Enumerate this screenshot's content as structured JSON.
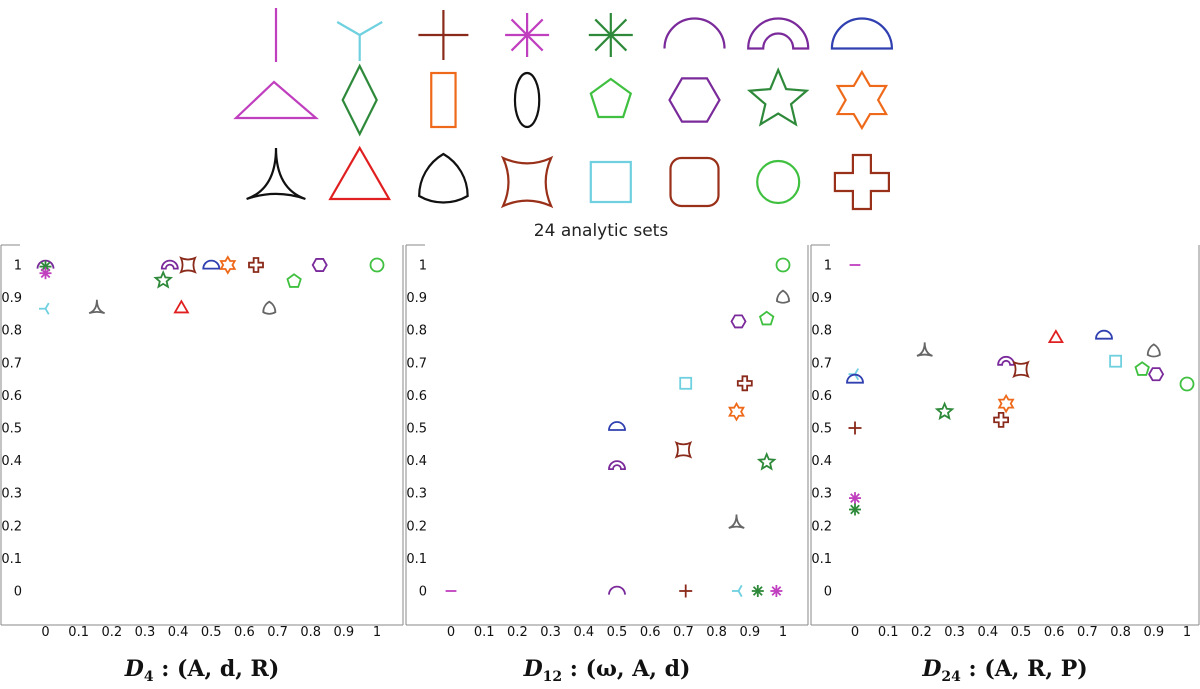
{
  "figure_caption": "24 analytic sets",
  "colors": {
    "magenta": "#c03fbf",
    "cyan": "#6fd0e0",
    "brown": "#8a2a1a",
    "green": "#2e8a3a",
    "purple": "#7a2a9a",
    "blue": "#3040b0",
    "orange": "#ee6a1a",
    "black": "#111111",
    "red": "#e02020",
    "lime": "#40c040",
    "gray": "#666666",
    "rust": "#993019"
  },
  "gallery": [
    [
      {
        "icon": "segment-icon",
        "color": "#c03fbf"
      },
      {
        "icon": "tripod-icon",
        "color": "#6fd0e0"
      },
      {
        "icon": "plus-icon",
        "color": "#8a2a1a"
      },
      {
        "icon": "asterisk8-icon",
        "color": "#c03fbf"
      },
      {
        "icon": "asterisk8-icon",
        "color": "#2e8a3a"
      },
      {
        "icon": "semicircle-arc-icon",
        "color": "#7a2a9a"
      },
      {
        "icon": "half-annulus-icon",
        "color": "#7a2a9a"
      },
      {
        "icon": "half-disk-icon",
        "color": "#3040b0"
      }
    ],
    [
      {
        "icon": "obtuse-triangle-icon",
        "color": "#c03fbf"
      },
      {
        "icon": "rhombus-icon",
        "color": "#2e8a3a"
      },
      {
        "icon": "rectangle-icon",
        "color": "#ee6a1a"
      },
      {
        "icon": "ellipse-icon",
        "color": "#111111"
      },
      {
        "icon": "pentagon-icon",
        "color": "#40c040"
      },
      {
        "icon": "hexagon-icon",
        "color": "#7a2a9a"
      },
      {
        "icon": "star5-icon",
        "color": "#2e8a3a"
      },
      {
        "icon": "star6-icon",
        "color": "#ee6a1a"
      }
    ],
    [
      {
        "icon": "deltoid-icon",
        "color": "#111111"
      },
      {
        "icon": "triangle-icon",
        "color": "#e02020"
      },
      {
        "icon": "reuleaux-icon",
        "color": "#111111"
      },
      {
        "icon": "concave-square-icon",
        "color": "#993019"
      },
      {
        "icon": "square-icon",
        "color": "#6fd0e0"
      },
      {
        "icon": "rounded-square-icon",
        "color": "#993019"
      },
      {
        "icon": "circle-icon",
        "color": "#40c040"
      },
      {
        "icon": "cross-icon",
        "color": "#993019"
      }
    ]
  ],
  "chart_data": [
    {
      "type": "scatter",
      "title": "D4 : (A, d, R)",
      "title_parts": {
        "cal": "D",
        "sub": "4",
        "rest": " : (A, d, R)"
      },
      "xlim": [
        0,
        1
      ],
      "ylim": [
        0,
        1
      ],
      "x_ticks": [
        "0",
        "0.1",
        "0.2",
        "0.3",
        "0.4",
        "0.5",
        "0.6",
        "0.7",
        "0.8",
        "0.9",
        "1"
      ],
      "y_ticks": [
        "0",
        "0.1",
        "0.2",
        "0.3",
        "0.4",
        "0.5",
        "0.6",
        "0.7",
        "0.8",
        "0.9",
        "1"
      ],
      "grid": false,
      "points": [
        {
          "marker": "semicircle-arc",
          "color": "#7a2a9a",
          "x": 0.0,
          "y": 1.0
        },
        {
          "marker": "asterisk8",
          "color": "#2e8a3a",
          "x": 0.0,
          "y": 0.995
        },
        {
          "marker": "asterisk8",
          "color": "#c03fbf",
          "x": 0.0,
          "y": 0.975
        },
        {
          "marker": "tripod",
          "color": "#6fd0e0",
          "x": 0.0,
          "y": 0.866
        },
        {
          "marker": "deltoid",
          "color": "#666666",
          "x": 0.155,
          "y": 0.866
        },
        {
          "marker": "half-annulus",
          "color": "#7a2a9a",
          "x": 0.375,
          "y": 1.0
        },
        {
          "marker": "star5",
          "color": "#2e8a3a",
          "x": 0.355,
          "y": 0.953
        },
        {
          "marker": "triangle",
          "color": "#e02020",
          "x": 0.41,
          "y": 0.866
        },
        {
          "marker": "concave-square",
          "color": "#8a2a1a",
          "x": 0.43,
          "y": 1.0
        },
        {
          "marker": "half-disk",
          "color": "#3040b0",
          "x": 0.5,
          "y": 1.0
        },
        {
          "marker": "star6",
          "color": "#ee6a1a",
          "x": 0.55,
          "y": 1.0
        },
        {
          "marker": "cross",
          "color": "#8a2a1a",
          "x": 0.635,
          "y": 1.0
        },
        {
          "marker": "reuleaux",
          "color": "#666666",
          "x": 0.675,
          "y": 0.866
        },
        {
          "marker": "pentagon",
          "color": "#40c040",
          "x": 0.75,
          "y": 0.95
        },
        {
          "marker": "hexagon",
          "color": "#7a2a9a",
          "x": 0.827,
          "y": 1.0
        },
        {
          "marker": "circle",
          "color": "#40c040",
          "x": 1.0,
          "y": 1.0
        }
      ]
    },
    {
      "type": "scatter",
      "title": "D12 : (ω, A, d)",
      "title_parts": {
        "cal": "D",
        "sub": "12",
        "rest": " : (ω, A, d)"
      },
      "xlim": [
        0,
        1
      ],
      "ylim": [
        0,
        1
      ],
      "x_ticks": [
        "0",
        "0.1",
        "0.2",
        "0.3",
        "0.4",
        "0.5",
        "0.6",
        "0.7",
        "0.8",
        "0.9",
        "1"
      ],
      "y_ticks": [
        "0",
        "0.1",
        "0.2",
        "0.3",
        "0.4",
        "0.5",
        "0.6",
        "0.7",
        "0.8",
        "0.9",
        "1"
      ],
      "grid": false,
      "points": [
        {
          "marker": "segment",
          "color": "#c03fbf",
          "x": 0.0,
          "y": 0.0
        },
        {
          "marker": "semicircle-arc",
          "color": "#7a2a9a",
          "x": 0.5,
          "y": 0.0
        },
        {
          "marker": "half-disk",
          "color": "#3040b0",
          "x": 0.5,
          "y": 0.505
        },
        {
          "marker": "half-annulus",
          "color": "#7a2a9a",
          "x": 0.5,
          "y": 0.385
        },
        {
          "marker": "plus",
          "color": "#8a2a1a",
          "x": 0.707,
          "y": 0.0
        },
        {
          "marker": "square",
          "color": "#6fd0e0",
          "x": 0.707,
          "y": 0.637
        },
        {
          "marker": "concave-square",
          "color": "#8a2a1a",
          "x": 0.7,
          "y": 0.433
        },
        {
          "marker": "hexagon",
          "color": "#7a2a9a",
          "x": 0.866,
          "y": 0.827
        },
        {
          "marker": "star6",
          "color": "#ee6a1a",
          "x": 0.86,
          "y": 0.55
        },
        {
          "marker": "deltoid",
          "color": "#666666",
          "x": 0.86,
          "y": 0.207
        },
        {
          "marker": "tripod",
          "color": "#6fd0e0",
          "x": 0.866,
          "y": 0.0
        },
        {
          "marker": "cross",
          "color": "#8a2a1a",
          "x": 0.885,
          "y": 0.637
        },
        {
          "marker": "asterisk8",
          "color": "#2e8a3a",
          "x": 0.924,
          "y": 0.0
        },
        {
          "marker": "pentagon",
          "color": "#40c040",
          "x": 0.951,
          "y": 0.835
        },
        {
          "marker": "star5",
          "color": "#2e8a3a",
          "x": 0.951,
          "y": 0.395
        },
        {
          "marker": "asterisk8",
          "color": "#c03fbf",
          "x": 0.98,
          "y": 0.0
        },
        {
          "marker": "reuleaux",
          "color": "#666666",
          "x": 1.0,
          "y": 0.9
        },
        {
          "marker": "circle",
          "color": "#40c040",
          "x": 1.0,
          "y": 1.0
        }
      ]
    },
    {
      "type": "scatter",
      "title": "D24 : (A, R, P)",
      "title_parts": {
        "cal": "D",
        "sub": "24",
        "rest": " : (A, R, P)"
      },
      "xlim": [
        0,
        1
      ],
      "ylim": [
        0,
        1
      ],
      "x_ticks": [
        "0",
        "0.1",
        "0.2",
        "0.3",
        "0.4",
        "0.5",
        "0.6",
        "0.7",
        "0.8",
        "0.9",
        "1"
      ],
      "y_ticks": [
        "0",
        "0.1",
        "0.2",
        "0.3",
        "0.4",
        "0.5",
        "0.6",
        "0.7",
        "0.8",
        "0.9",
        "1"
      ],
      "grid": false,
      "points": [
        {
          "marker": "segment",
          "color": "#c03fbf",
          "x": 0.0,
          "y": 1.0
        },
        {
          "marker": "tripod",
          "color": "#6fd0e0",
          "x": 0.0,
          "y": 0.665
        },
        {
          "marker": "half-disk",
          "color": "#3040b0",
          "x": 0.0,
          "y": 0.65
        },
        {
          "marker": "plus",
          "color": "#8a2a1a",
          "x": 0.0,
          "y": 0.5
        },
        {
          "marker": "asterisk8",
          "color": "#c03fbf",
          "x": 0.0,
          "y": 0.285
        },
        {
          "marker": "asterisk8",
          "color": "#2e8a3a",
          "x": 0.0,
          "y": 0.25
        },
        {
          "marker": "deltoid",
          "color": "#666666",
          "x": 0.21,
          "y": 0.735
        },
        {
          "marker": "star5",
          "color": "#2e8a3a",
          "x": 0.27,
          "y": 0.55
        },
        {
          "marker": "half-annulus",
          "color": "#7a2a9a",
          "x": 0.455,
          "y": 0.705
        },
        {
          "marker": "star6",
          "color": "#ee6a1a",
          "x": 0.455,
          "y": 0.575
        },
        {
          "marker": "cross",
          "color": "#8a2a1a",
          "x": 0.44,
          "y": 0.525
        },
        {
          "marker": "concave-square",
          "color": "#8a2a1a",
          "x": 0.5,
          "y": 0.68
        },
        {
          "marker": "triangle",
          "color": "#e02020",
          "x": 0.605,
          "y": 0.775
        },
        {
          "marker": "half-disk",
          "color": "#3040b0",
          "x": 0.75,
          "y": 0.785
        },
        {
          "marker": "square",
          "color": "#6fd0e0",
          "x": 0.785,
          "y": 0.705
        },
        {
          "marker": "pentagon",
          "color": "#40c040",
          "x": 0.865,
          "y": 0.68
        },
        {
          "marker": "reuleaux",
          "color": "#666666",
          "x": 0.9,
          "y": 0.735
        },
        {
          "marker": "hexagon",
          "color": "#7a2a9a",
          "x": 0.907,
          "y": 0.665
        },
        {
          "marker": "circle",
          "color": "#40c040",
          "x": 1.0,
          "y": 0.635
        }
      ]
    }
  ]
}
